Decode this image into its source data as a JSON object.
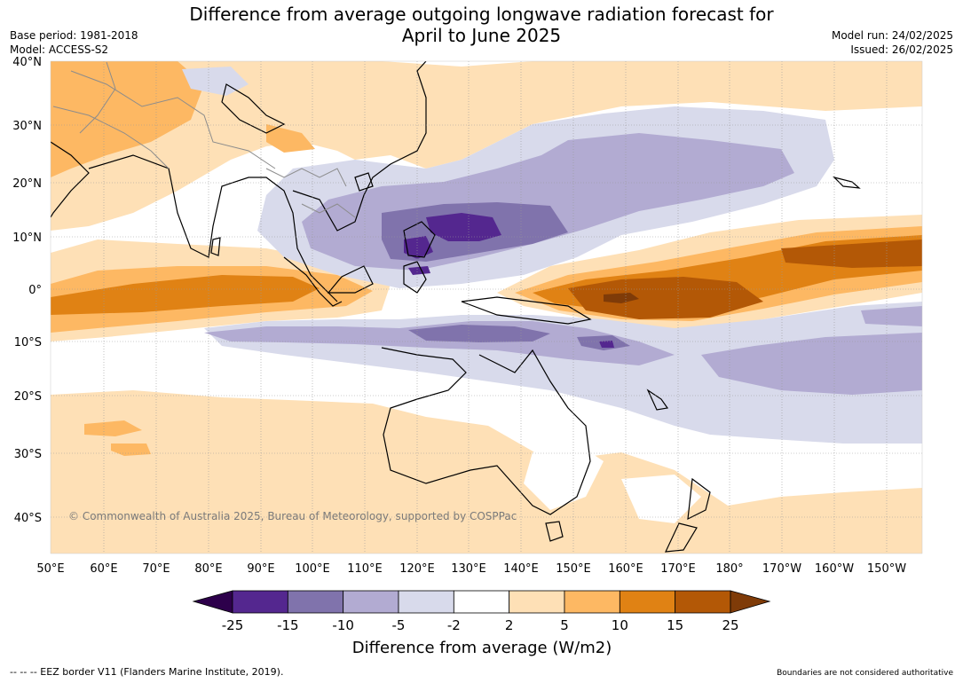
{
  "title_line1": "Difference from average outgoing longwave radiation forecast for",
  "title_line2": "April to June 2025",
  "base_period": "Base period: 1981-2018",
  "model": "Model: ACCESS-S2",
  "model_run": "Model run: 24/02/2025",
  "issued": "Issued: 26/02/2025",
  "copyright": "© Commonwealth of Australia 2025, Bureau of Meteorology, supported by COSPPac",
  "lat_labels": [
    "40°N",
    "30°N",
    "20°N",
    "10°N",
    "0°",
    "10°S",
    "20°S",
    "30°S",
    "40°S"
  ],
  "lon_labels": [
    "50°E",
    "60°E",
    "70°E",
    "80°E",
    "90°E",
    "100°E",
    "110°E",
    "120°E",
    "130°E",
    "140°E",
    "150°E",
    "160°E",
    "170°E",
    "180°",
    "170°W",
    "160°W",
    "150°W"
  ],
  "colorbar": {
    "title": "Difference from average (W/m2)",
    "ticks": [
      "-25",
      "-15",
      "-10",
      "-5",
      "-2",
      "2",
      "5",
      "10",
      "15",
      "25"
    ],
    "colors": [
      "#54278f",
      "#8073ac",
      "#b2abd2",
      "#d8daeb",
      "#ffffff",
      "#fee0b6",
      "#fdb863",
      "#e08214",
      "#b35806"
    ],
    "low_extend_color": "#2d004b",
    "high_extend_color": "#7f3b08"
  },
  "footer_left": "--  --  -- EEZ border V11 (Flanders Marine Institute, 2019).",
  "footer_right": "Boundaries are not considered authoritative"
}
